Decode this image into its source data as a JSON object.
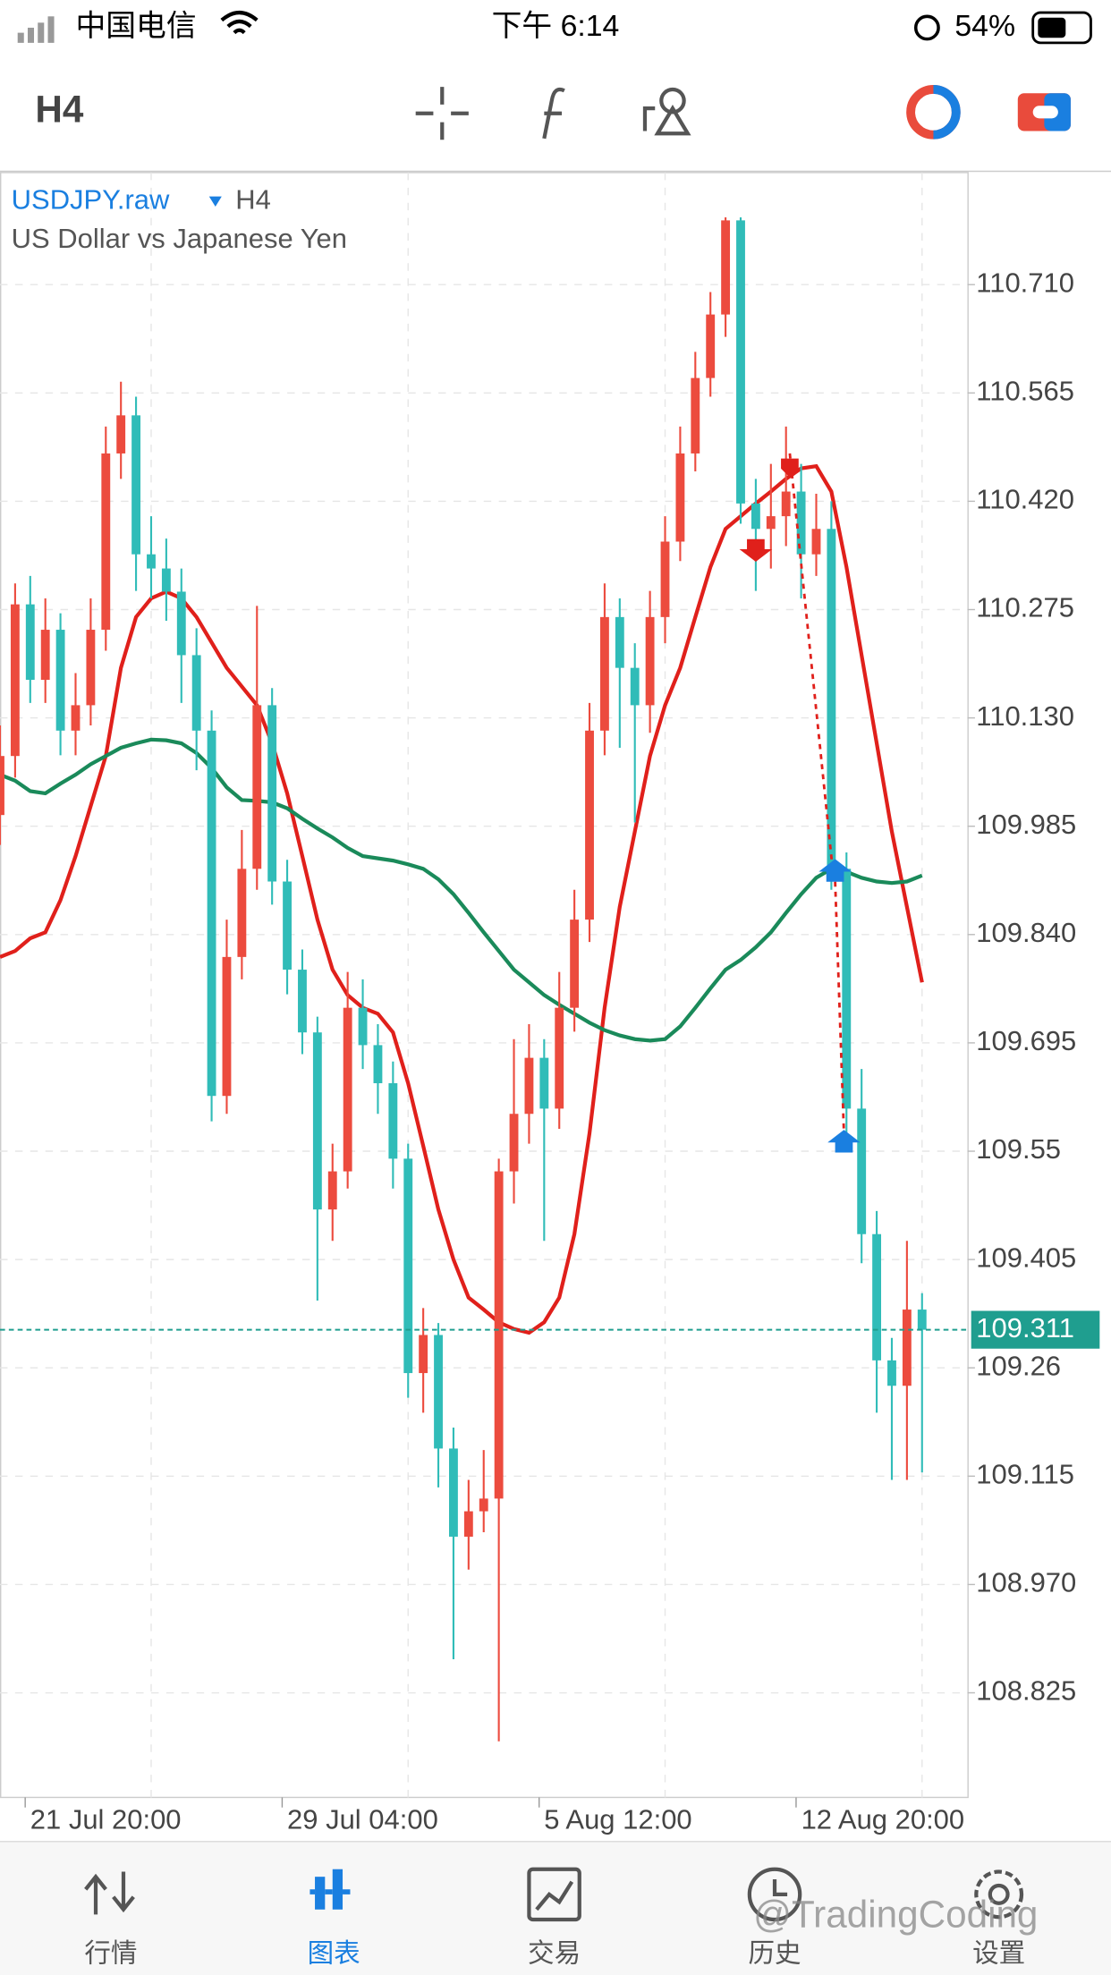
{
  "status_bar": {
    "carrier": "中国电信",
    "time": "下午 6:14",
    "battery": "54%"
  },
  "toolbar": {
    "timeframe": "H4"
  },
  "chart_data": {
    "type": "candlestick",
    "symbol": "USDJPY.raw",
    "timeframe": "H4",
    "description": "US Dollar vs Japanese Yen",
    "up_color": "#ec4b3e",
    "down_color": "#30bcb8",
    "open": [
      110.0,
      110.079,
      110.282,
      110.181,
      110.248,
      110.113,
      110.147,
      110.248,
      110.484,
      110.535,
      110.349,
      110.33,
      110.299,
      110.214,
      110.113,
      109.624,
      109.81,
      109.928,
      110.147,
      109.911,
      109.793,
      109.709,
      109.472,
      109.523,
      109.742,
      109.692,
      109.641,
      109.54,
      109.253,
      109.304,
      109.152,
      109.034,
      109.068,
      109.085,
      109.523,
      109.6,
      109.675,
      109.607,
      109.742,
      109.86,
      110.113,
      110.265,
      110.197,
      110.147,
      110.265,
      110.366,
      110.484,
      110.585,
      110.67,
      110.796,
      110.417,
      110.383,
      110.4,
      110.433,
      110.349,
      110.383,
      109.928,
      109.607,
      109.439,
      109.27,
      109.236,
      109.338
    ],
    "high": [
      110.12,
      110.31,
      110.32,
      110.29,
      110.27,
      110.19,
      110.29,
      110.52,
      110.58,
      110.56,
      110.4,
      110.37,
      110.33,
      110.25,
      110.14,
      109.86,
      109.98,
      110.28,
      110.17,
      109.94,
      109.82,
      109.73,
      109.56,
      109.79,
      109.78,
      109.72,
      109.67,
      109.56,
      109.34,
      109.32,
      109.18,
      109.11,
      109.15,
      109.54,
      109.7,
      109.72,
      109.7,
      109.79,
      109.9,
      110.15,
      110.31,
      110.29,
      110.23,
      110.3,
      110.4,
      110.52,
      110.62,
      110.7,
      110.8,
      110.8,
      110.45,
      110.47,
      110.52,
      110.47,
      110.43,
      110.42,
      109.95,
      109.66,
      109.47,
      109.3,
      109.43,
      109.36
    ],
    "low": [
      109.96,
      110.05,
      110.15,
      110.15,
      110.08,
      110.08,
      110.12,
      110.22,
      110.45,
      110.3,
      110.29,
      110.26,
      110.15,
      110.06,
      109.59,
      109.6,
      109.78,
      109.9,
      109.88,
      109.76,
      109.68,
      109.35,
      109.43,
      109.5,
      109.66,
      109.6,
      109.5,
      109.22,
      109.2,
      109.1,
      108.87,
      108.99,
      109.04,
      108.76,
      109.48,
      109.56,
      109.43,
      109.58,
      109.71,
      109.83,
      110.08,
      110.09,
      109.99,
      110.11,
      110.23,
      110.34,
      110.46,
      110.56,
      110.64,
      110.39,
      110.3,
      110.33,
      110.36,
      110.29,
      110.32,
      109.9,
      109.56,
      109.4,
      109.2,
      109.11,
      109.11,
      109.12
    ],
    "close": [
      110.079,
      110.282,
      110.181,
      110.248,
      110.113,
      110.147,
      110.248,
      110.484,
      110.535,
      110.349,
      110.33,
      110.299,
      110.214,
      110.113,
      109.624,
      109.81,
      109.928,
      110.147,
      109.911,
      109.793,
      109.709,
      109.472,
      109.523,
      109.742,
      109.692,
      109.641,
      109.54,
      109.253,
      109.304,
      109.152,
      109.034,
      109.068,
      109.085,
      109.523,
      109.6,
      109.675,
      109.607,
      109.742,
      109.86,
      110.113,
      110.265,
      110.197,
      110.147,
      110.265,
      110.366,
      110.484,
      110.585,
      110.67,
      110.796,
      110.417,
      110.383,
      110.4,
      110.433,
      110.349,
      110.383,
      109.928,
      109.607,
      109.439,
      109.27,
      109.236,
      109.338,
      109.311
    ],
    "lines": [
      {
        "color": "#e0201b",
        "values": [
          109.81,
          109.818,
          109.835,
          109.843,
          109.886,
          109.945,
          110.012,
          110.079,
          110.197,
          110.265,
          110.29,
          110.299,
          110.29,
          110.265,
          110.231,
          110.197,
          110.172,
          110.147,
          110.096,
          110.029,
          109.945,
          109.86,
          109.793,
          109.759,
          109.742,
          109.734,
          109.709,
          109.641,
          109.557,
          109.472,
          109.405,
          109.354,
          109.338,
          109.321,
          109.312,
          109.307,
          109.321,
          109.354,
          109.439,
          109.574,
          109.742,
          109.877,
          109.978,
          110.079,
          110.147,
          110.197,
          110.265,
          110.332,
          110.383,
          110.4,
          110.417,
          110.433,
          110.45,
          110.464,
          110.467,
          110.433,
          110.332,
          110.214,
          110.096,
          109.978,
          109.877,
          109.776
        ]
      },
      {
        "color": "#1a8a5a",
        "values": [
          110.054,
          110.046,
          110.032,
          110.029,
          110.042,
          110.054,
          110.068,
          110.079,
          110.09,
          110.096,
          110.101,
          110.1,
          110.096,
          110.083,
          110.063,
          110.037,
          110.02,
          110.019,
          110.017,
          110.009,
          109.995,
          109.982,
          109.97,
          109.956,
          109.945,
          109.942,
          109.939,
          109.934,
          109.928,
          109.914,
          109.894,
          109.869,
          109.843,
          109.818,
          109.793,
          109.776,
          109.759,
          109.746,
          109.734,
          109.722,
          109.712,
          109.705,
          109.7,
          109.698,
          109.7,
          109.717,
          109.742,
          109.768,
          109.793,
          109.806,
          109.823,
          109.843,
          109.869,
          109.894,
          109.916,
          109.928,
          109.924,
          109.916,
          109.911,
          109.909,
          109.911,
          109.919
        ]
      }
    ],
    "current_price": 109.311,
    "current_price_color": "#1f9e8f",
    "xlim": [
      0,
      64
    ],
    "xticks": [
      {
        "value": 10,
        "label": "21 Jul 20:00"
      },
      {
        "value": 27,
        "label": "29 Jul 04:00"
      },
      {
        "value": 44,
        "label": "5 Aug 12:00"
      },
      {
        "value": 61,
        "label": "12 Aug 20:00"
      }
    ],
    "ylim": [
      108.685,
      110.86
    ],
    "yticks": [
      {
        "value": 110.71,
        "label": "110.710"
      },
      110.565,
      {
        "value": 110.42,
        "label": "110.420"
      },
      110.275,
      {
        "value": 110.13,
        "label": "110.130"
      },
      109.985,
      {
        "value": 109.84,
        "label": "109.840"
      },
      109.695,
      109.55,
      109.405,
      109.26,
      109.115,
      {
        "value": 108.97,
        "label": "108.970"
      },
      108.825
    ],
    "grid": true
  },
  "tabs": {
    "items": [
      "行情",
      "图表",
      "交易",
      "历史",
      "设置"
    ],
    "active": 1
  },
  "watermark": "@TradingCoding"
}
